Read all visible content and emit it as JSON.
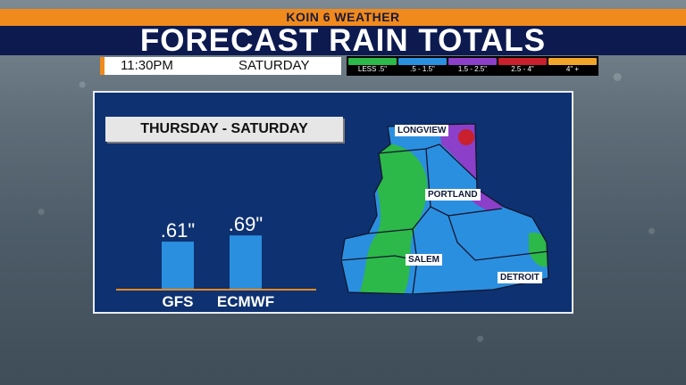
{
  "header": {
    "station": "KOIN 6 WEATHER",
    "title": "FORECAST RAIN TOTALS",
    "time": "11:30PM",
    "day": "SATURDAY"
  },
  "legend": [
    {
      "label": "LESS .5\"",
      "color": "#2db84a"
    },
    {
      "label": ".5 - 1.5\"",
      "color": "#2b8fe0"
    },
    {
      "label": "1.5 - 2.5\"",
      "color": "#8c3fc9"
    },
    {
      "label": "2.5 - 4\"",
      "color": "#c8202c"
    },
    {
      "label": "4\" +",
      "color": "#f0a52a"
    }
  ],
  "chart_data": {
    "type": "bar",
    "title": "THURSDAY - SATURDAY",
    "categories": [
      "GFS",
      "ECMWF"
    ],
    "values": [
      0.61,
      0.69
    ],
    "value_labels": [
      ".61\"",
      ".69\""
    ],
    "ylim": [
      0,
      1.5
    ],
    "bar_color": "#2b8fe0",
    "baseline_color": "#f08a1c",
    "grid": false
  },
  "map": {
    "cities": [
      "LONGVIEW",
      "PORTLAND",
      "SALEM",
      "DETROIT"
    ]
  }
}
